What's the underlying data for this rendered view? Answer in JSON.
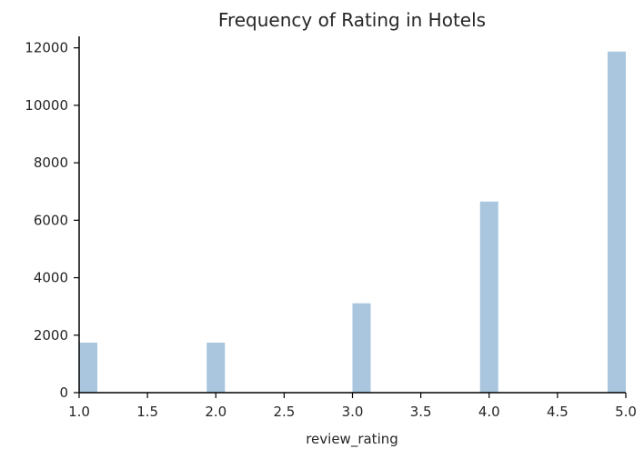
{
  "chart_data": {
    "type": "bar",
    "title": "Frequency of Rating in Hotels",
    "xlabel": "review_rating",
    "ylabel": "",
    "xlim": [
      1.0,
      5.0
    ],
    "ylim": [
      0,
      12400
    ],
    "x_ticks": [
      "1.0",
      "1.5",
      "2.0",
      "2.5",
      "3.0",
      "3.5",
      "4.0",
      "4.5",
      "5.0"
    ],
    "y_ticks": [
      "0",
      "2000",
      "4000",
      "6000",
      "8000",
      "10000",
      "12000"
    ],
    "grid": false,
    "bin_width": 0.1333,
    "bins": [
      {
        "start": 1.0,
        "value": 1740
      },
      {
        "start": 1.9333,
        "value": 1740
      },
      {
        "start": 3.0,
        "value": 3110
      },
      {
        "start": 3.9333,
        "value": 6650
      },
      {
        "start": 4.8667,
        "value": 11870
      }
    ],
    "colors": {
      "bar": "#a9c6de",
      "axis": "#000000",
      "text": "#262626"
    }
  }
}
